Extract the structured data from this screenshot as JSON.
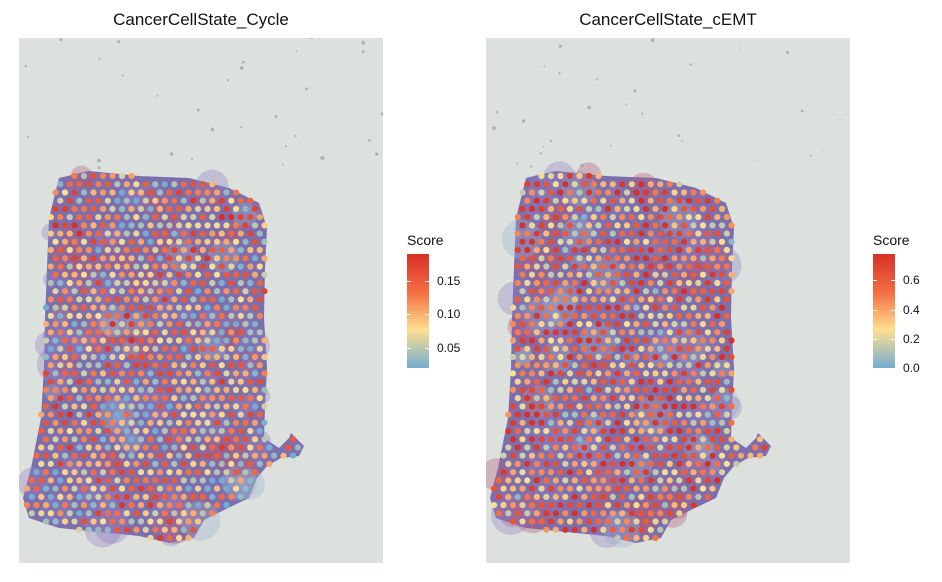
{
  "panels": [
    {
      "title": "CancerCellState_Cycle",
      "legend": {
        "title": "Score",
        "ticks": [
          "0.15",
          "0.10",
          "0.05"
        ],
        "tick_positions": [
          0.15,
          0.1,
          0.05
        ],
        "range": [
          0.02,
          0.19
        ]
      },
      "seed": 7,
      "dot_bias": 0.45
    },
    {
      "title": "CancerCellState_cEMT",
      "legend": {
        "title": "Score",
        "ticks": [
          "0.6",
          "0.4",
          "0.2",
          "0.0"
        ],
        "tick_positions": [
          0.6,
          0.4,
          0.2,
          0.0
        ],
        "range": [
          0.0,
          0.78
        ]
      },
      "seed": 19,
      "dot_bias": 0.6
    }
  ],
  "colors": {
    "background": "#dde1de",
    "tissue": "#6a5aa8",
    "scale_low": "#74add1",
    "scale_mid": "#fee090",
    "scale_high": "#d73027"
  }
}
